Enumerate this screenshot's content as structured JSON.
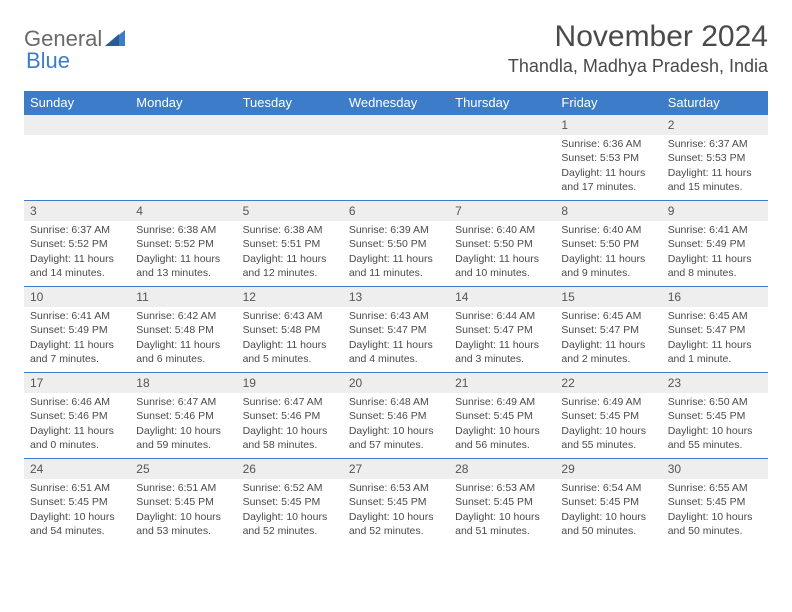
{
  "logo": {
    "text1": "General",
    "text2": "Blue"
  },
  "title": "November 2024",
  "location": "Thandla, Madhya Pradesh, India",
  "columns": [
    "Sunday",
    "Monday",
    "Tuesday",
    "Wednesday",
    "Thursday",
    "Friday",
    "Saturday"
  ],
  "colors": {
    "header_bg": "#3d7cc9",
    "header_text": "#ffffff",
    "daynum_bg": "#eeeeee",
    "border": "#3d7cc9",
    "text": "#4a4a4a"
  },
  "typography": {
    "title_fontsize": 30,
    "location_fontsize": 18,
    "header_fontsize": 13,
    "daynum_fontsize": 12,
    "cell_fontsize": 10.5
  },
  "weeks": [
    [
      {
        "empty": true
      },
      {
        "empty": true
      },
      {
        "empty": true
      },
      {
        "empty": true
      },
      {
        "empty": true
      },
      {
        "n": "1",
        "sr": "Sunrise: 6:36 AM",
        "ss": "Sunset: 5:53 PM",
        "dl": "Daylight: 11 hours and 17 minutes."
      },
      {
        "n": "2",
        "sr": "Sunrise: 6:37 AM",
        "ss": "Sunset: 5:53 PM",
        "dl": "Daylight: 11 hours and 15 minutes."
      }
    ],
    [
      {
        "n": "3",
        "sr": "Sunrise: 6:37 AM",
        "ss": "Sunset: 5:52 PM",
        "dl": "Daylight: 11 hours and 14 minutes."
      },
      {
        "n": "4",
        "sr": "Sunrise: 6:38 AM",
        "ss": "Sunset: 5:52 PM",
        "dl": "Daylight: 11 hours and 13 minutes."
      },
      {
        "n": "5",
        "sr": "Sunrise: 6:38 AM",
        "ss": "Sunset: 5:51 PM",
        "dl": "Daylight: 11 hours and 12 minutes."
      },
      {
        "n": "6",
        "sr": "Sunrise: 6:39 AM",
        "ss": "Sunset: 5:50 PM",
        "dl": "Daylight: 11 hours and 11 minutes."
      },
      {
        "n": "7",
        "sr": "Sunrise: 6:40 AM",
        "ss": "Sunset: 5:50 PM",
        "dl": "Daylight: 11 hours and 10 minutes."
      },
      {
        "n": "8",
        "sr": "Sunrise: 6:40 AM",
        "ss": "Sunset: 5:50 PM",
        "dl": "Daylight: 11 hours and 9 minutes."
      },
      {
        "n": "9",
        "sr": "Sunrise: 6:41 AM",
        "ss": "Sunset: 5:49 PM",
        "dl": "Daylight: 11 hours and 8 minutes."
      }
    ],
    [
      {
        "n": "10",
        "sr": "Sunrise: 6:41 AM",
        "ss": "Sunset: 5:49 PM",
        "dl": "Daylight: 11 hours and 7 minutes."
      },
      {
        "n": "11",
        "sr": "Sunrise: 6:42 AM",
        "ss": "Sunset: 5:48 PM",
        "dl": "Daylight: 11 hours and 6 minutes."
      },
      {
        "n": "12",
        "sr": "Sunrise: 6:43 AM",
        "ss": "Sunset: 5:48 PM",
        "dl": "Daylight: 11 hours and 5 minutes."
      },
      {
        "n": "13",
        "sr": "Sunrise: 6:43 AM",
        "ss": "Sunset: 5:47 PM",
        "dl": "Daylight: 11 hours and 4 minutes."
      },
      {
        "n": "14",
        "sr": "Sunrise: 6:44 AM",
        "ss": "Sunset: 5:47 PM",
        "dl": "Daylight: 11 hours and 3 minutes."
      },
      {
        "n": "15",
        "sr": "Sunrise: 6:45 AM",
        "ss": "Sunset: 5:47 PM",
        "dl": "Daylight: 11 hours and 2 minutes."
      },
      {
        "n": "16",
        "sr": "Sunrise: 6:45 AM",
        "ss": "Sunset: 5:47 PM",
        "dl": "Daylight: 11 hours and 1 minute."
      }
    ],
    [
      {
        "n": "17",
        "sr": "Sunrise: 6:46 AM",
        "ss": "Sunset: 5:46 PM",
        "dl": "Daylight: 11 hours and 0 minutes."
      },
      {
        "n": "18",
        "sr": "Sunrise: 6:47 AM",
        "ss": "Sunset: 5:46 PM",
        "dl": "Daylight: 10 hours and 59 minutes."
      },
      {
        "n": "19",
        "sr": "Sunrise: 6:47 AM",
        "ss": "Sunset: 5:46 PM",
        "dl": "Daylight: 10 hours and 58 minutes."
      },
      {
        "n": "20",
        "sr": "Sunrise: 6:48 AM",
        "ss": "Sunset: 5:46 PM",
        "dl": "Daylight: 10 hours and 57 minutes."
      },
      {
        "n": "21",
        "sr": "Sunrise: 6:49 AM",
        "ss": "Sunset: 5:45 PM",
        "dl": "Daylight: 10 hours and 56 minutes."
      },
      {
        "n": "22",
        "sr": "Sunrise: 6:49 AM",
        "ss": "Sunset: 5:45 PM",
        "dl": "Daylight: 10 hours and 55 minutes."
      },
      {
        "n": "23",
        "sr": "Sunrise: 6:50 AM",
        "ss": "Sunset: 5:45 PM",
        "dl": "Daylight: 10 hours and 55 minutes."
      }
    ],
    [
      {
        "n": "24",
        "sr": "Sunrise: 6:51 AM",
        "ss": "Sunset: 5:45 PM",
        "dl": "Daylight: 10 hours and 54 minutes."
      },
      {
        "n": "25",
        "sr": "Sunrise: 6:51 AM",
        "ss": "Sunset: 5:45 PM",
        "dl": "Daylight: 10 hours and 53 minutes."
      },
      {
        "n": "26",
        "sr": "Sunrise: 6:52 AM",
        "ss": "Sunset: 5:45 PM",
        "dl": "Daylight: 10 hours and 52 minutes."
      },
      {
        "n": "27",
        "sr": "Sunrise: 6:53 AM",
        "ss": "Sunset: 5:45 PM",
        "dl": "Daylight: 10 hours and 52 minutes."
      },
      {
        "n": "28",
        "sr": "Sunrise: 6:53 AM",
        "ss": "Sunset: 5:45 PM",
        "dl": "Daylight: 10 hours and 51 minutes."
      },
      {
        "n": "29",
        "sr": "Sunrise: 6:54 AM",
        "ss": "Sunset: 5:45 PM",
        "dl": "Daylight: 10 hours and 50 minutes."
      },
      {
        "n": "30",
        "sr": "Sunrise: 6:55 AM",
        "ss": "Sunset: 5:45 PM",
        "dl": "Daylight: 10 hours and 50 minutes."
      }
    ]
  ]
}
